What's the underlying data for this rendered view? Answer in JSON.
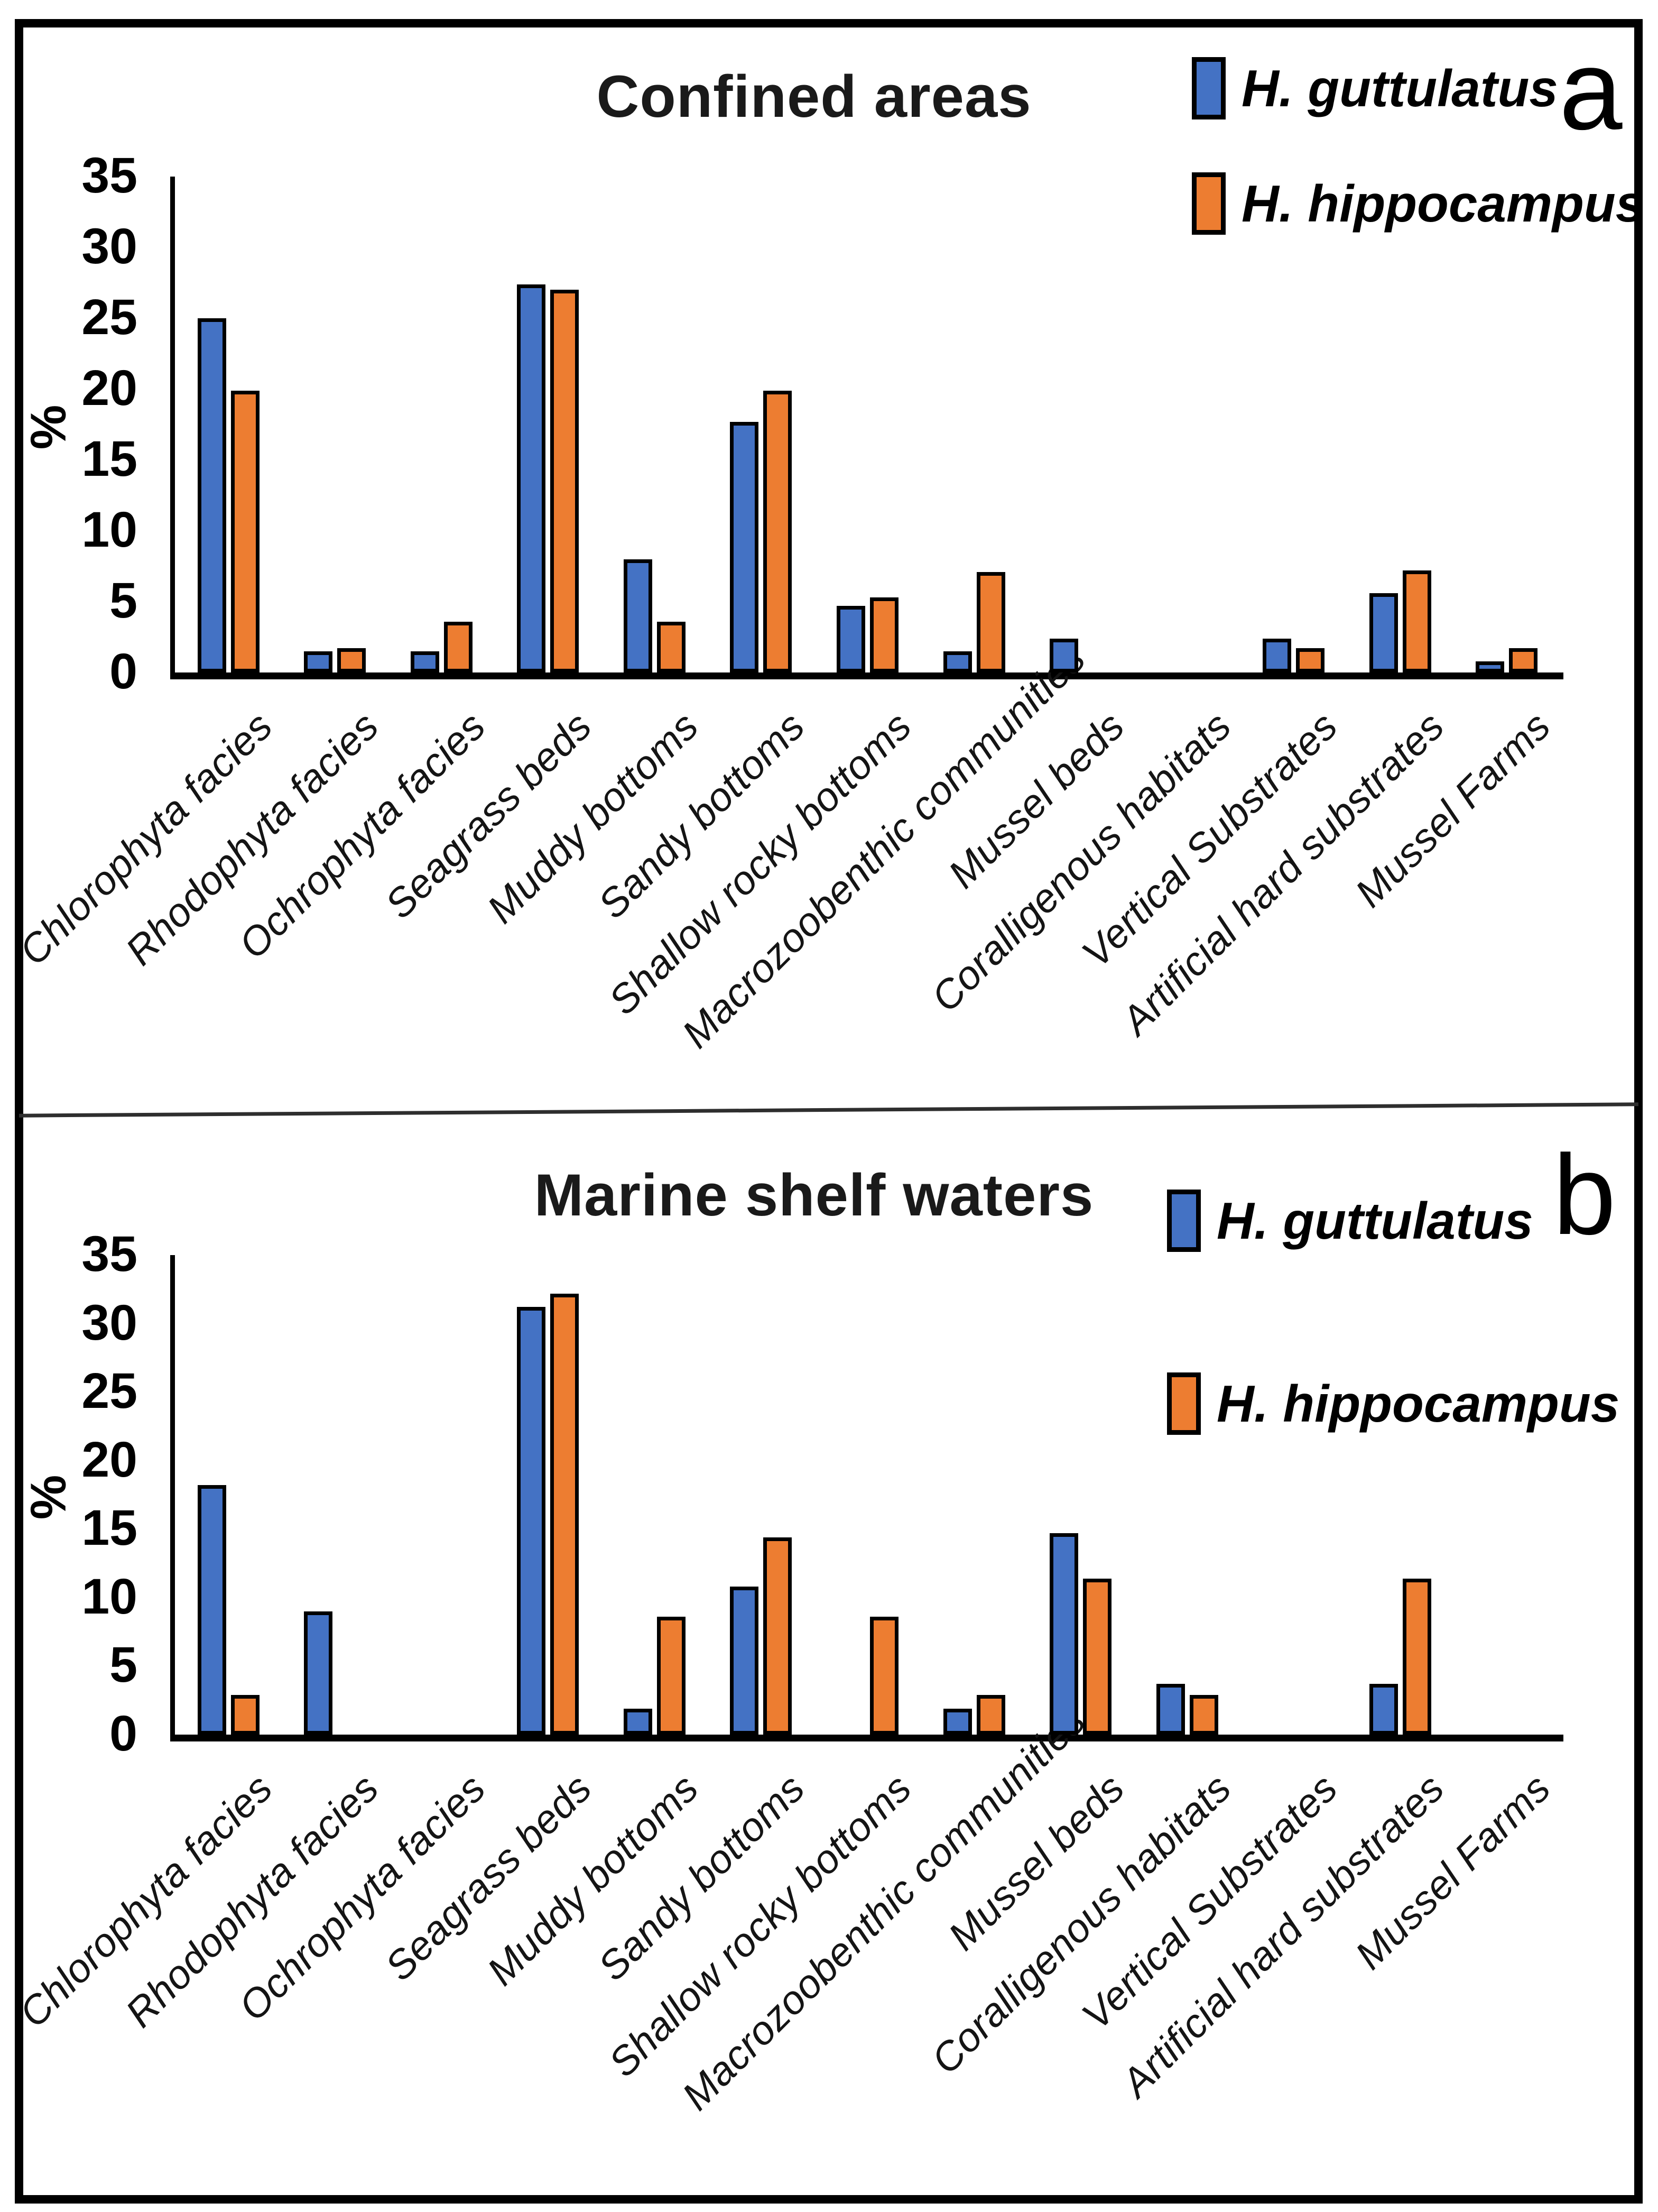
{
  "figure": {
    "background": "#ffffff",
    "border_color": "#000000",
    "bar_outline_color": "#000000",
    "panel_divider": true
  },
  "chart_data": [
    {
      "type": "bar",
      "panel_label": "a",
      "title": "Confined areas",
      "xlabel": "",
      "ylabel": "%",
      "ylim": [
        0,
        35
      ],
      "yticks": [
        0,
        5,
        10,
        15,
        20,
        25,
        30,
        35
      ],
      "grid": false,
      "legend_position": "top-right",
      "categories": [
        "Chlorophyta facies",
        "Rhodophyta facies",
        "Ochrophyta facies",
        "Seagrass beds",
        "Muddy bottoms",
        "Sandy bottoms",
        "Shallow rocky bottoms",
        "Macrozoobenthic communities",
        "Mussel beds",
        "Coralligenous habitats",
        "Vertical Substrates",
        "Artificial hard substrates",
        "Mussel Farms"
      ],
      "series": [
        {
          "name": "H. guttulatus",
          "color": "#4472C4",
          "values": [
            25.0,
            1.5,
            1.5,
            27.4,
            8.0,
            17.7,
            4.7,
            1.5,
            2.4,
            0,
            2.4,
            5.6,
            0.8
          ]
        },
        {
          "name": "H. hippocampus",
          "color": "#ED7D31",
          "values": [
            19.9,
            1.7,
            3.6,
            27.0,
            3.6,
            19.9,
            5.3,
            7.1,
            0,
            0,
            1.7,
            7.2,
            1.7
          ]
        }
      ]
    },
    {
      "type": "bar",
      "panel_label": "b",
      "title": "Marine shelf waters",
      "xlabel": "",
      "ylabel": "%",
      "ylim": [
        0,
        35
      ],
      "yticks": [
        0,
        5,
        10,
        15,
        20,
        25,
        30,
        35
      ],
      "grid": false,
      "legend_position": "top-right",
      "categories": [
        "Chlorophyta facies",
        "Rhodophyta facies",
        "Ochrophyta facies",
        "Seagrass beds",
        "Muddy bottoms",
        "Sandy bottoms",
        "Shallow rocky bottoms",
        "Macrozoobenthic communities",
        "Mussel beds",
        "Coralligenous habitats",
        "Vertical Substrates",
        "Artificial hard substrates",
        "Mussel Farms"
      ],
      "series": [
        {
          "name": "H. guttulatus",
          "color": "#4472C4",
          "values": [
            18.2,
            9.0,
            0,
            31.2,
            1.9,
            10.8,
            0,
            1.9,
            14.7,
            3.7,
            0,
            3.7,
            0
          ]
        },
        {
          "name": "H. hippocampus",
          "color": "#ED7D31",
          "values": [
            2.9,
            0,
            0,
            32.2,
            8.6,
            14.4,
            8.6,
            2.9,
            11.4,
            2.9,
            0,
            11.4,
            0
          ]
        }
      ]
    }
  ]
}
